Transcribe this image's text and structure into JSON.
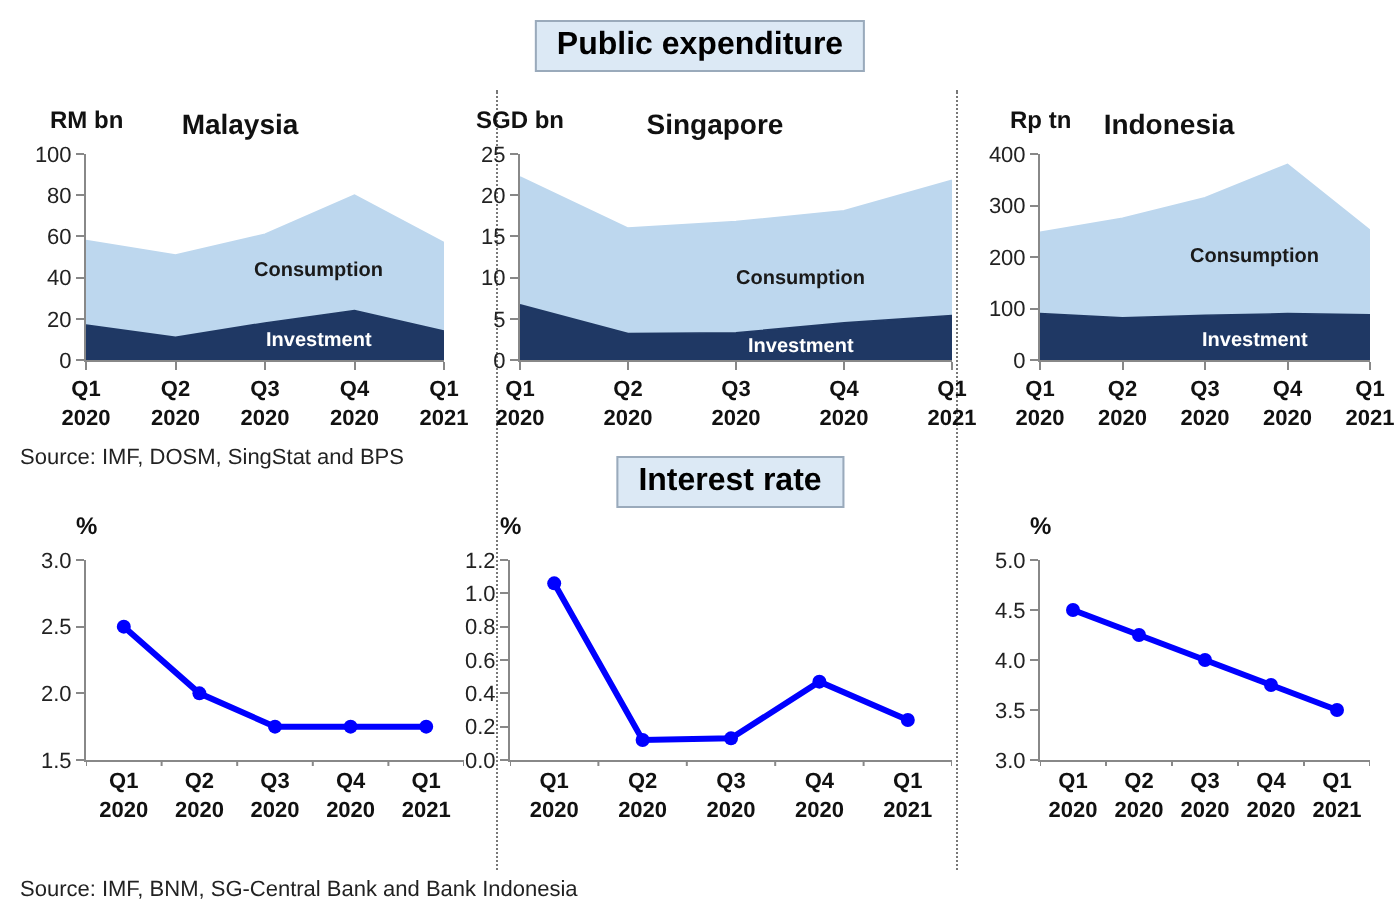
{
  "chart_data": [
    {
      "type": "area",
      "stacked": true,
      "title": "Malaysia",
      "ylabel": "RM bn",
      "categories": [
        "Q1 2020",
        "Q2 2020",
        "Q3 2020",
        "Q4 2020",
        "Q1 2021"
      ],
      "series": [
        {
          "name": "Investment",
          "color": "#1f3864",
          "values": [
            17,
            11,
            18,
            24,
            14
          ]
        },
        {
          "name": "Consumption",
          "color": "#bdd7ee",
          "values": [
            41,
            40,
            43,
            56,
            43
          ]
        }
      ],
      "ylim": [
        0,
        100
      ],
      "yticks": [
        0,
        20,
        40,
        60,
        80,
        100
      ],
      "grid": false,
      "legend": false,
      "annotations": [
        "Source: IMF, DOSM, SingStat and BPS"
      ]
    },
    {
      "type": "area",
      "stacked": true,
      "title": "Singapore",
      "ylabel": "SGD bn",
      "categories": [
        "Q1 2020",
        "Q2 2020",
        "Q3 2020",
        "Q4 2020",
        "Q1 2021"
      ],
      "series": [
        {
          "name": "Investment",
          "color": "#1f3864",
          "values": [
            6.7,
            3.2,
            3.3,
            4.5,
            5.4
          ]
        },
        {
          "name": "Consumption",
          "color": "#bdd7ee",
          "values": [
            15.5,
            12.8,
            13.5,
            13.6,
            16.4
          ]
        }
      ],
      "ylim": [
        0,
        25
      ],
      "yticks": [
        0,
        5,
        10,
        15,
        20,
        25
      ],
      "grid": false,
      "legend": false,
      "annotations": [
        "Public expenditure"
      ]
    },
    {
      "type": "area",
      "stacked": true,
      "title": "Indonesia",
      "ylabel": "Rp tn",
      "categories": [
        "Q1 2020",
        "Q2 2020",
        "Q3 2020",
        "Q4 2020",
        "Q1 2021"
      ],
      "series": [
        {
          "name": "Investment",
          "color": "#1f3864",
          "values": [
            90,
            82,
            87,
            90,
            88
          ]
        },
        {
          "name": "Consumption",
          "color": "#bdd7ee",
          "values": [
            158,
            193,
            228,
            290,
            164
          ]
        }
      ],
      "ylim": [
        0,
        400
      ],
      "yticks": [
        0,
        100,
        200,
        300,
        400
      ],
      "grid": false,
      "legend": false
    },
    {
      "type": "line",
      "ylabel": "%",
      "categories": [
        "Q1 2020",
        "Q2 2020",
        "Q3 2020",
        "Q4 2020",
        "Q1 2021"
      ],
      "series": [
        {
          "color": "#0000ff",
          "values": [
            2.5,
            2.0,
            1.75,
            1.75,
            1.75
          ]
        }
      ],
      "ylim": [
        1.5,
        3
      ],
      "yticks": [
        {
          "value": 1.5,
          "label": "1.5"
        },
        {
          "value": 2,
          "label": "2.0"
        },
        {
          "value": 2.5,
          "label": "2.5"
        },
        {
          "value": 3,
          "label": "3.0"
        }
      ],
      "marker": "circle",
      "grid": false,
      "legend": false,
      "annotations": [
        "Source: IMF, BNM, SG-Central Bank and Bank Indonesia"
      ]
    },
    {
      "type": "line",
      "title": "Interest rate",
      "ylabel": "%",
      "categories": [
        "Q1 2020",
        "Q2 2020",
        "Q3 2020",
        "Q4 2020",
        "Q1 2021"
      ],
      "series": [
        {
          "color": "#0000ff",
          "values": [
            1.06,
            0.12,
            0.13,
            0.47,
            0.24
          ]
        }
      ],
      "ylim": [
        0,
        1.2
      ],
      "yticks": [
        {
          "value": 0,
          "label": "0.0"
        },
        {
          "value": 0.2,
          "label": "0.2"
        },
        {
          "value": 0.4,
          "label": "0.4"
        },
        {
          "value": 0.6,
          "label": "0.6"
        },
        {
          "value": 0.8,
          "label": "0.8"
        },
        {
          "value": 1,
          "label": "1.0"
        },
        {
          "value": 1.2,
          "label": "1.2"
        }
      ],
      "marker": "circle",
      "grid": false,
      "legend": false
    },
    {
      "type": "line",
      "ylabel": "%",
      "categories": [
        "Q1 2020",
        "Q2 2020",
        "Q3 2020",
        "Q4 2020",
        "Q1 2021"
      ],
      "series": [
        {
          "color": "#0000ff",
          "values": [
            4.5,
            4.25,
            4.0,
            3.75,
            3.5
          ]
        }
      ],
      "ylim": [
        3,
        5
      ],
      "yticks": [
        {
          "value": 3,
          "label": "3.0"
        },
        {
          "value": 3.5,
          "label": "3.5"
        },
        {
          "value": 4,
          "label": "4.0"
        },
        {
          "value": 4.5,
          "label": "4.5"
        },
        {
          "value": 5,
          "label": "5.0"
        }
      ],
      "marker": "circle",
      "grid": false,
      "legend": false
    }
  ]
}
